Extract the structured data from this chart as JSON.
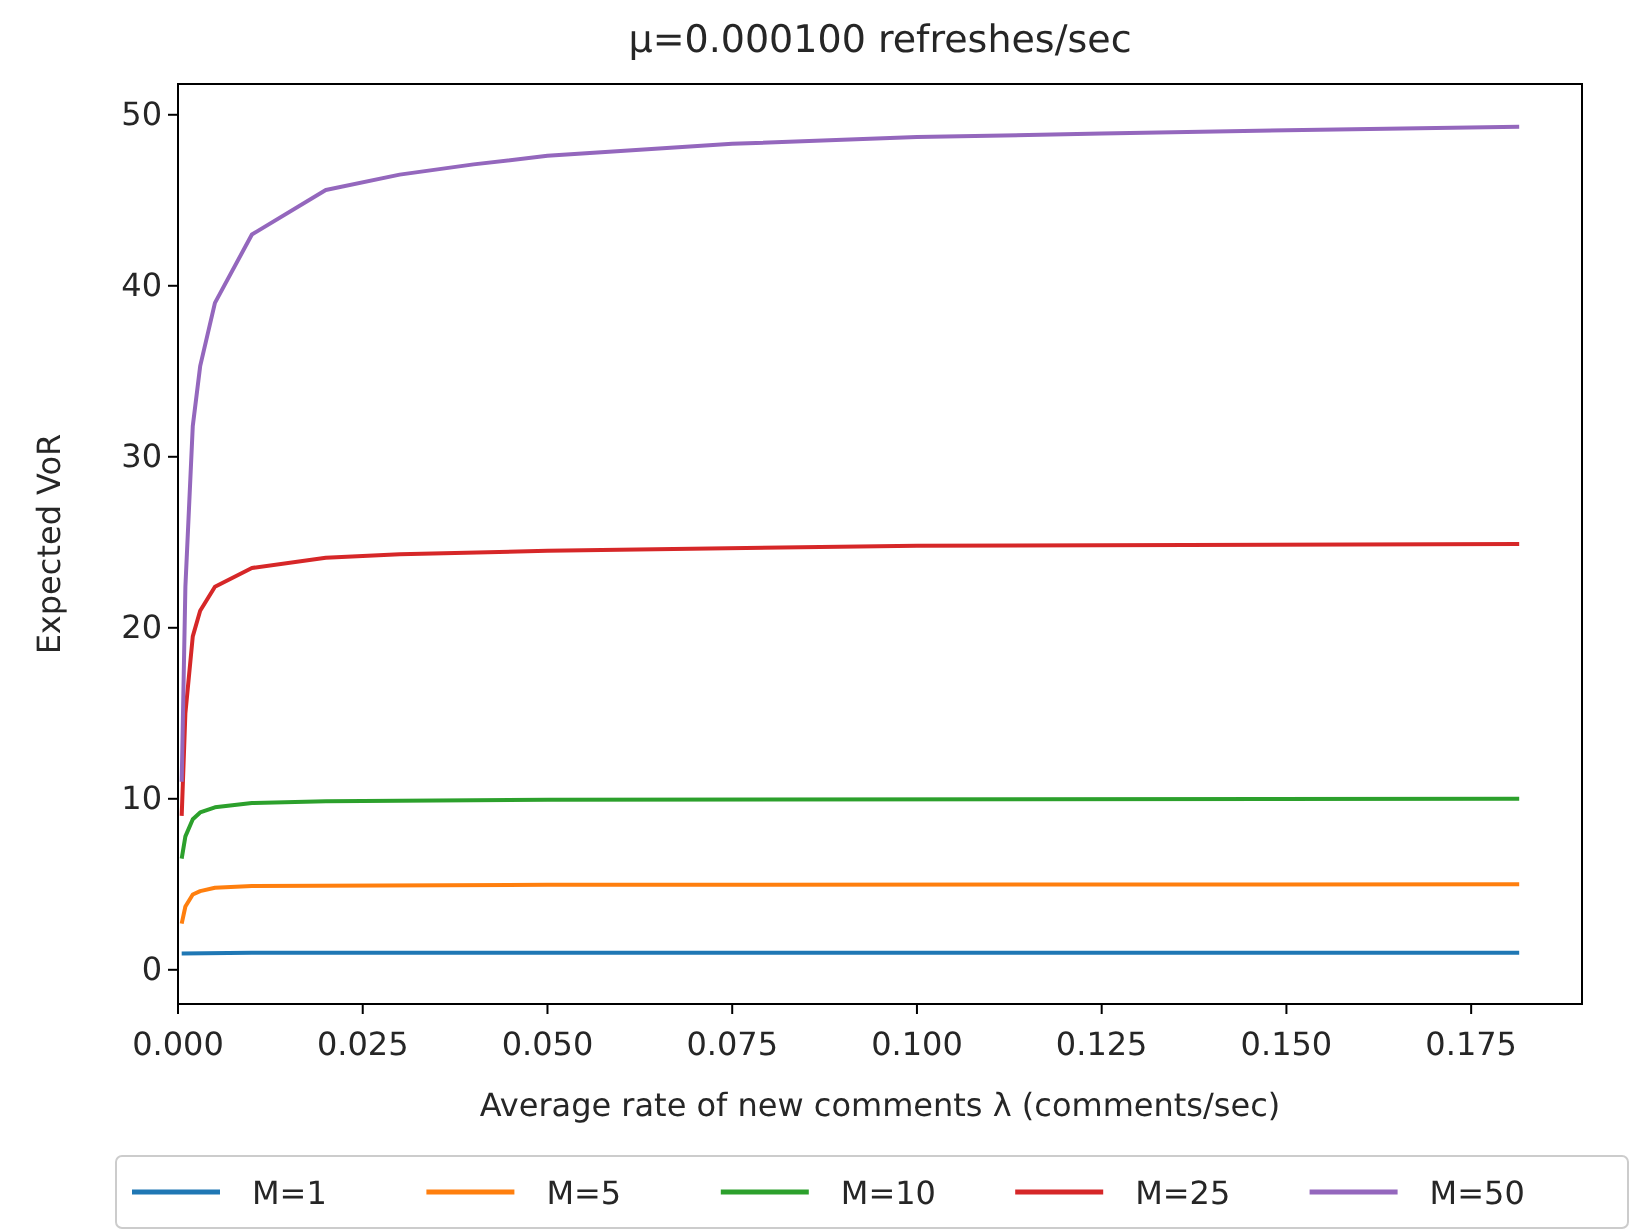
{
  "chart_data": {
    "type": "line",
    "title": "μ=0.000100 refreshes/sec",
    "xlabel": "Average rate of new comments λ (comments/sec)",
    "ylabel": "Expected VoR",
    "xlim": [
      0,
      0.19
    ],
    "xticks": [
      {
        "value": 0,
        "label": "0.000"
      },
      {
        "value": 0.025,
        "label": "0.025"
      },
      {
        "value": 0.05,
        "label": "0.050"
      },
      {
        "value": 0.075,
        "label": "0.075"
      },
      {
        "value": 0.1,
        "label": "0.100"
      },
      {
        "value": 0.125,
        "label": "0.125"
      },
      {
        "value": 0.15,
        "label": "0.150"
      },
      {
        "value": 0.175,
        "label": "0.175"
      }
    ],
    "ylim": [
      -2,
      51.8
    ],
    "yticks": [
      0,
      10,
      20,
      30,
      40,
      50
    ],
    "grid": false,
    "legend": "bottom",
    "marker": "none",
    "line_style": "solid",
    "series": [
      {
        "name": "M=1",
        "color": "#1f77b4",
        "x": [
          0.0005,
          0.01,
          0.1815
        ],
        "values": [
          0.95,
          1,
          1
        ]
      },
      {
        "name": "M=5",
        "color": "#ff7f0e",
        "x": [
          0.0005,
          0.001,
          0.002,
          0.003,
          0.005,
          0.01,
          0.05,
          0.1815
        ],
        "values": [
          2.7,
          3.7,
          4.4,
          4.6,
          4.8,
          4.9,
          4.97,
          5
        ]
      },
      {
        "name": "M=10",
        "color": "#2ca02c",
        "x": [
          0.0005,
          0.001,
          0.002,
          0.003,
          0.005,
          0.01,
          0.02,
          0.05,
          0.1815
        ],
        "values": [
          6.5,
          7.8,
          8.8,
          9.2,
          9.5,
          9.75,
          9.85,
          9.95,
          10
        ]
      },
      {
        "name": "M=25",
        "color": "#d62728",
        "x": [
          0.0005,
          0.001,
          0.002,
          0.003,
          0.005,
          0.01,
          0.02,
          0.03,
          0.05,
          0.1,
          0.1815
        ],
        "values": [
          9,
          15,
          19.5,
          21,
          22.4,
          23.5,
          24.1,
          24.3,
          24.5,
          24.8,
          24.9
        ]
      },
      {
        "name": "M=50",
        "color": "#9467bd",
        "x": [
          0.0005,
          0.001,
          0.002,
          0.003,
          0.005,
          0.01,
          0.02,
          0.03,
          0.04,
          0.05,
          0.075,
          0.1,
          0.125,
          0.15,
          0.1815
        ],
        "values": [
          11,
          22.4,
          31.8,
          35.3,
          39,
          43,
          45.6,
          46.5,
          47.1,
          47.6,
          48.3,
          48.7,
          48.9,
          49.1,
          49.3
        ]
      }
    ]
  }
}
